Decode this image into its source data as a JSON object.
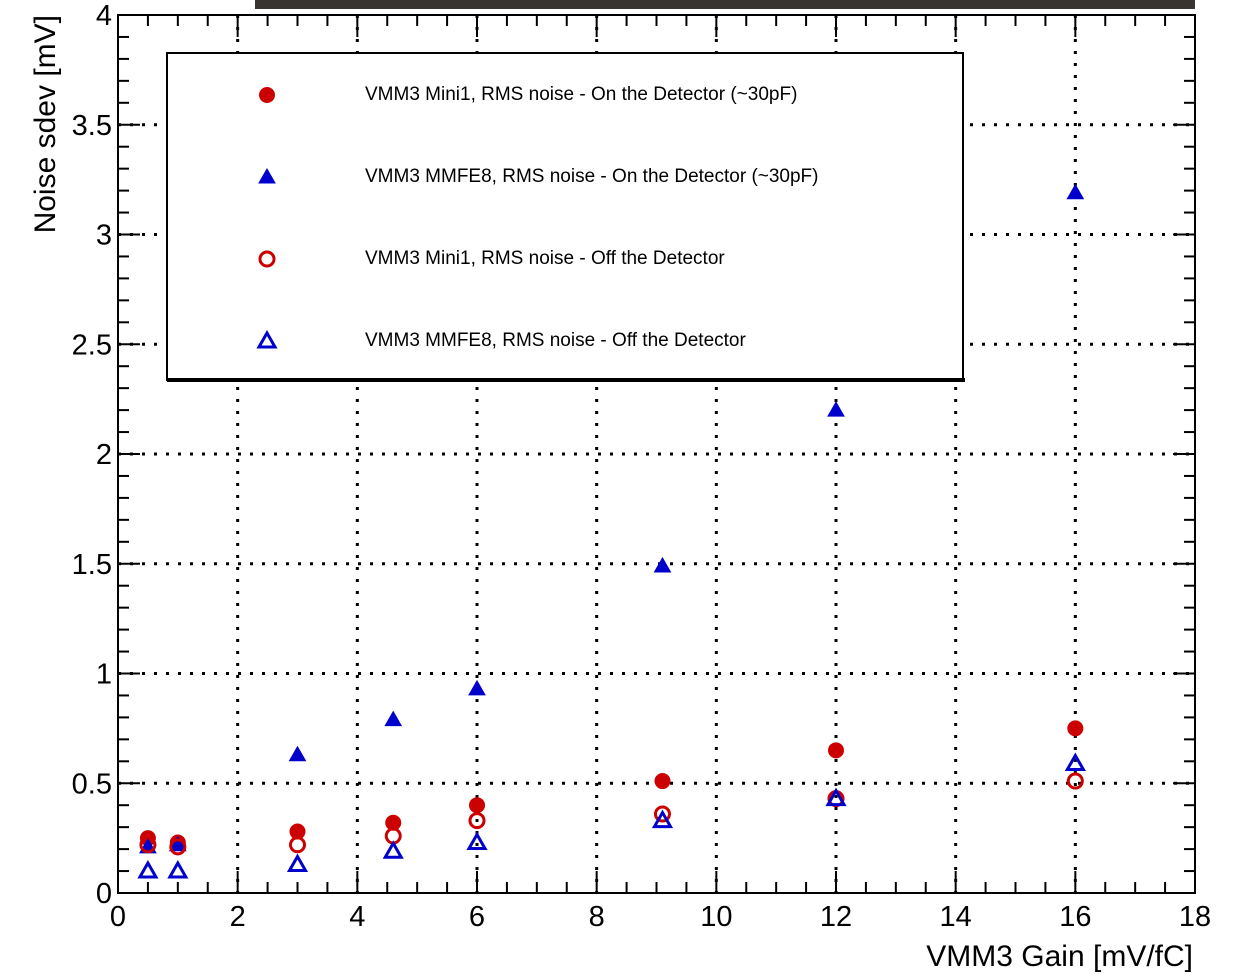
{
  "chart_data": {
    "type": "scatter",
    "x_label": "VMM3 Gain [mV/fC]",
    "y_label": "Noise sdev [mV]",
    "x": [
      0.5,
      1,
      3,
      4.6,
      6,
      9.1,
      12,
      16
    ],
    "series": [
      {
        "name": "VMM3 Mini1, RMS noise - On the Detector (~30pF)",
        "color": "#cc0000",
        "marker": "circle",
        "filled": true,
        "values": [
          0.25,
          0.23,
          0.28,
          0.32,
          0.4,
          0.51,
          0.65,
          0.75
        ]
      },
      {
        "name": "VMM3 MMFE8, RMS noise - On the Detector (~30pF)",
        "color": "#0000cc",
        "marker": "triangle",
        "filled": true,
        "values": [
          0.21,
          0.22,
          0.63,
          0.79,
          0.93,
          1.49,
          2.2,
          3.19
        ]
      },
      {
        "name": "VMM3 Mini1, RMS noise - Off the Detector",
        "color": "#cc0000",
        "marker": "circle",
        "filled": false,
        "values": [
          0.22,
          0.21,
          0.22,
          0.26,
          0.33,
          0.36,
          0.43,
          0.51
        ]
      },
      {
        "name": "VMM3 MMFE8, RMS noise - Off the Detector",
        "color": "#0000cc",
        "marker": "triangle",
        "filled": false,
        "values": [
          0.1,
          0.1,
          0.13,
          0.19,
          0.23,
          0.33,
          0.43,
          0.59
        ]
      }
    ],
    "xlim": [
      0,
      18
    ],
    "ylim": [
      0,
      4
    ],
    "xticks": [
      0,
      2,
      4,
      6,
      8,
      10,
      12,
      14,
      16,
      18
    ],
    "yticks": [
      0,
      0.5,
      1,
      1.5,
      2,
      2.5,
      3,
      3.5,
      4
    ],
    "grid": true,
    "legend": "upper left"
  }
}
